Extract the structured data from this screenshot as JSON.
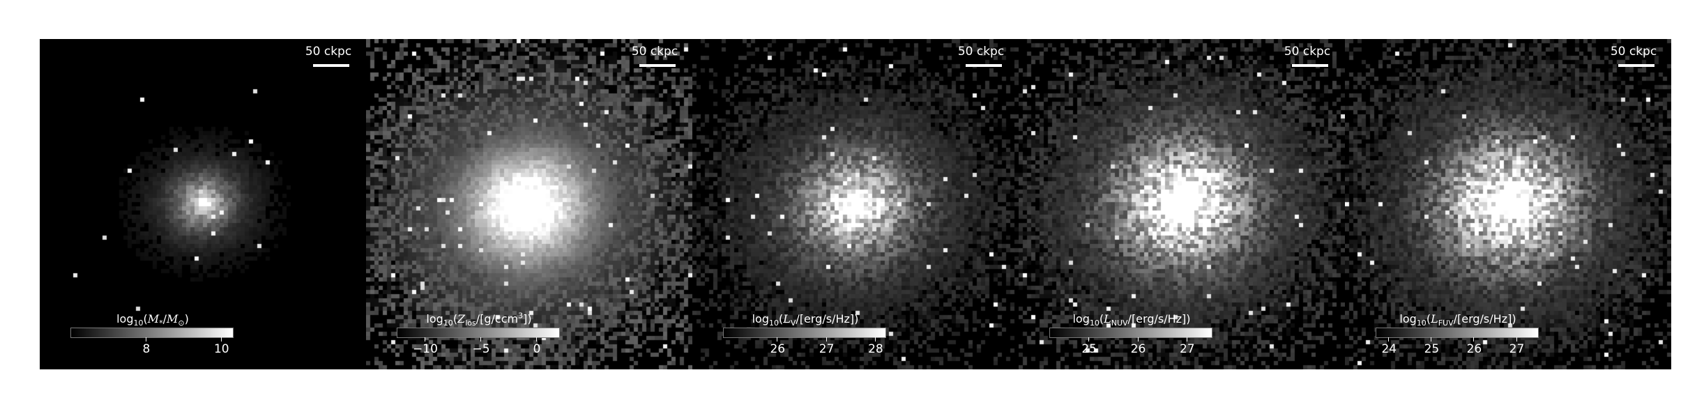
{
  "scalebar_text": "50 ckpc",
  "colorbars": {
    "p1": {
      "title_prefix": "log",
      "title_sub": "10",
      "title_open": "(",
      "title_sym": "M",
      "title_symsub": "*",
      "title_mid": "/",
      "title_sym2": "M",
      "title_sym2sub": "⊙",
      "title_close": ")",
      "ticks": [
        {
          "label": "8",
          "value": 8
        },
        {
          "label": "10",
          "value": 10
        }
      ],
      "range": [
        6.0,
        10.3
      ]
    },
    "p2": {
      "title_prefix": "log",
      "title_sub": "10",
      "title_open": "(",
      "title_sym": "Z",
      "title_symsub": "los",
      "title_rest": "/[g/ccm",
      "title_sup": "3",
      "title_close": "])",
      "ticks": [
        {
          "label": "−10",
          "value": -10
        },
        {
          "label": "−5",
          "value": -5
        },
        {
          "label": "0",
          "value": 0
        }
      ],
      "range": [
        -12.5,
        2.0
      ]
    },
    "p3": {
      "title_prefix": "log",
      "title_sub": "10",
      "title_open": "(",
      "title_sym": "L",
      "title_symsub": "V",
      "title_rest": "/[erg/s/Hz])",
      "ticks": [
        {
          "label": "26",
          "value": 26
        },
        {
          "label": "27",
          "value": 27
        },
        {
          "label": "28",
          "value": 28
        }
      ],
      "range": [
        24.9,
        28.2
      ]
    },
    "p4": {
      "title_prefix": "log",
      "title_sub": "10",
      "title_open": "(",
      "title_sym": "L",
      "title_symsub": "NUV",
      "title_rest": "/[erg/s/Hz])",
      "ticks": [
        {
          "label": "25",
          "value": 25
        },
        {
          "label": "26",
          "value": 26
        },
        {
          "label": "27",
          "value": 27
        }
      ],
      "range": [
        24.2,
        27.5
      ]
    },
    "p5": {
      "title_prefix": "log",
      "title_sub": "10",
      "title_open": "(",
      "title_sym": "L",
      "title_symsub": "FUV",
      "title_rest": "/[erg/s/Hz])",
      "ticks": [
        {
          "label": "24",
          "value": 24
        },
        {
          "label": "25",
          "value": 25
        },
        {
          "label": "26",
          "value": 26
        },
        {
          "label": "27",
          "value": 27
        }
      ],
      "range": [
        23.7,
        27.5
      ]
    }
  },
  "colormap": "gray"
}
